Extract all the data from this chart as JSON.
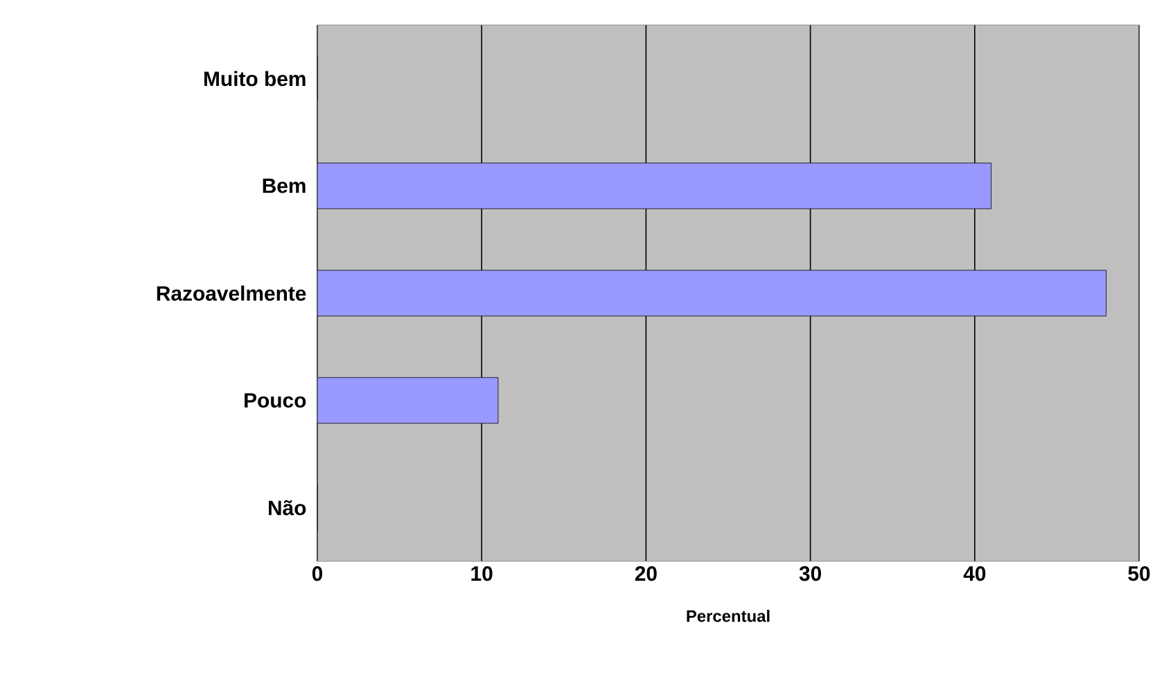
{
  "chart_data": {
    "type": "bar",
    "orientation": "horizontal",
    "xlabel": "Percentual",
    "categories": [
      "Muito bem",
      "Bem",
      "Razoavelmente",
      "Pouco",
      "Não"
    ],
    "values": [
      0,
      41,
      48,
      11,
      0
    ],
    "color": "#9999ff",
    "xlim": [
      0,
      50
    ],
    "xticks": [
      0,
      10,
      20,
      30,
      40,
      50
    ],
    "grid": "x"
  }
}
